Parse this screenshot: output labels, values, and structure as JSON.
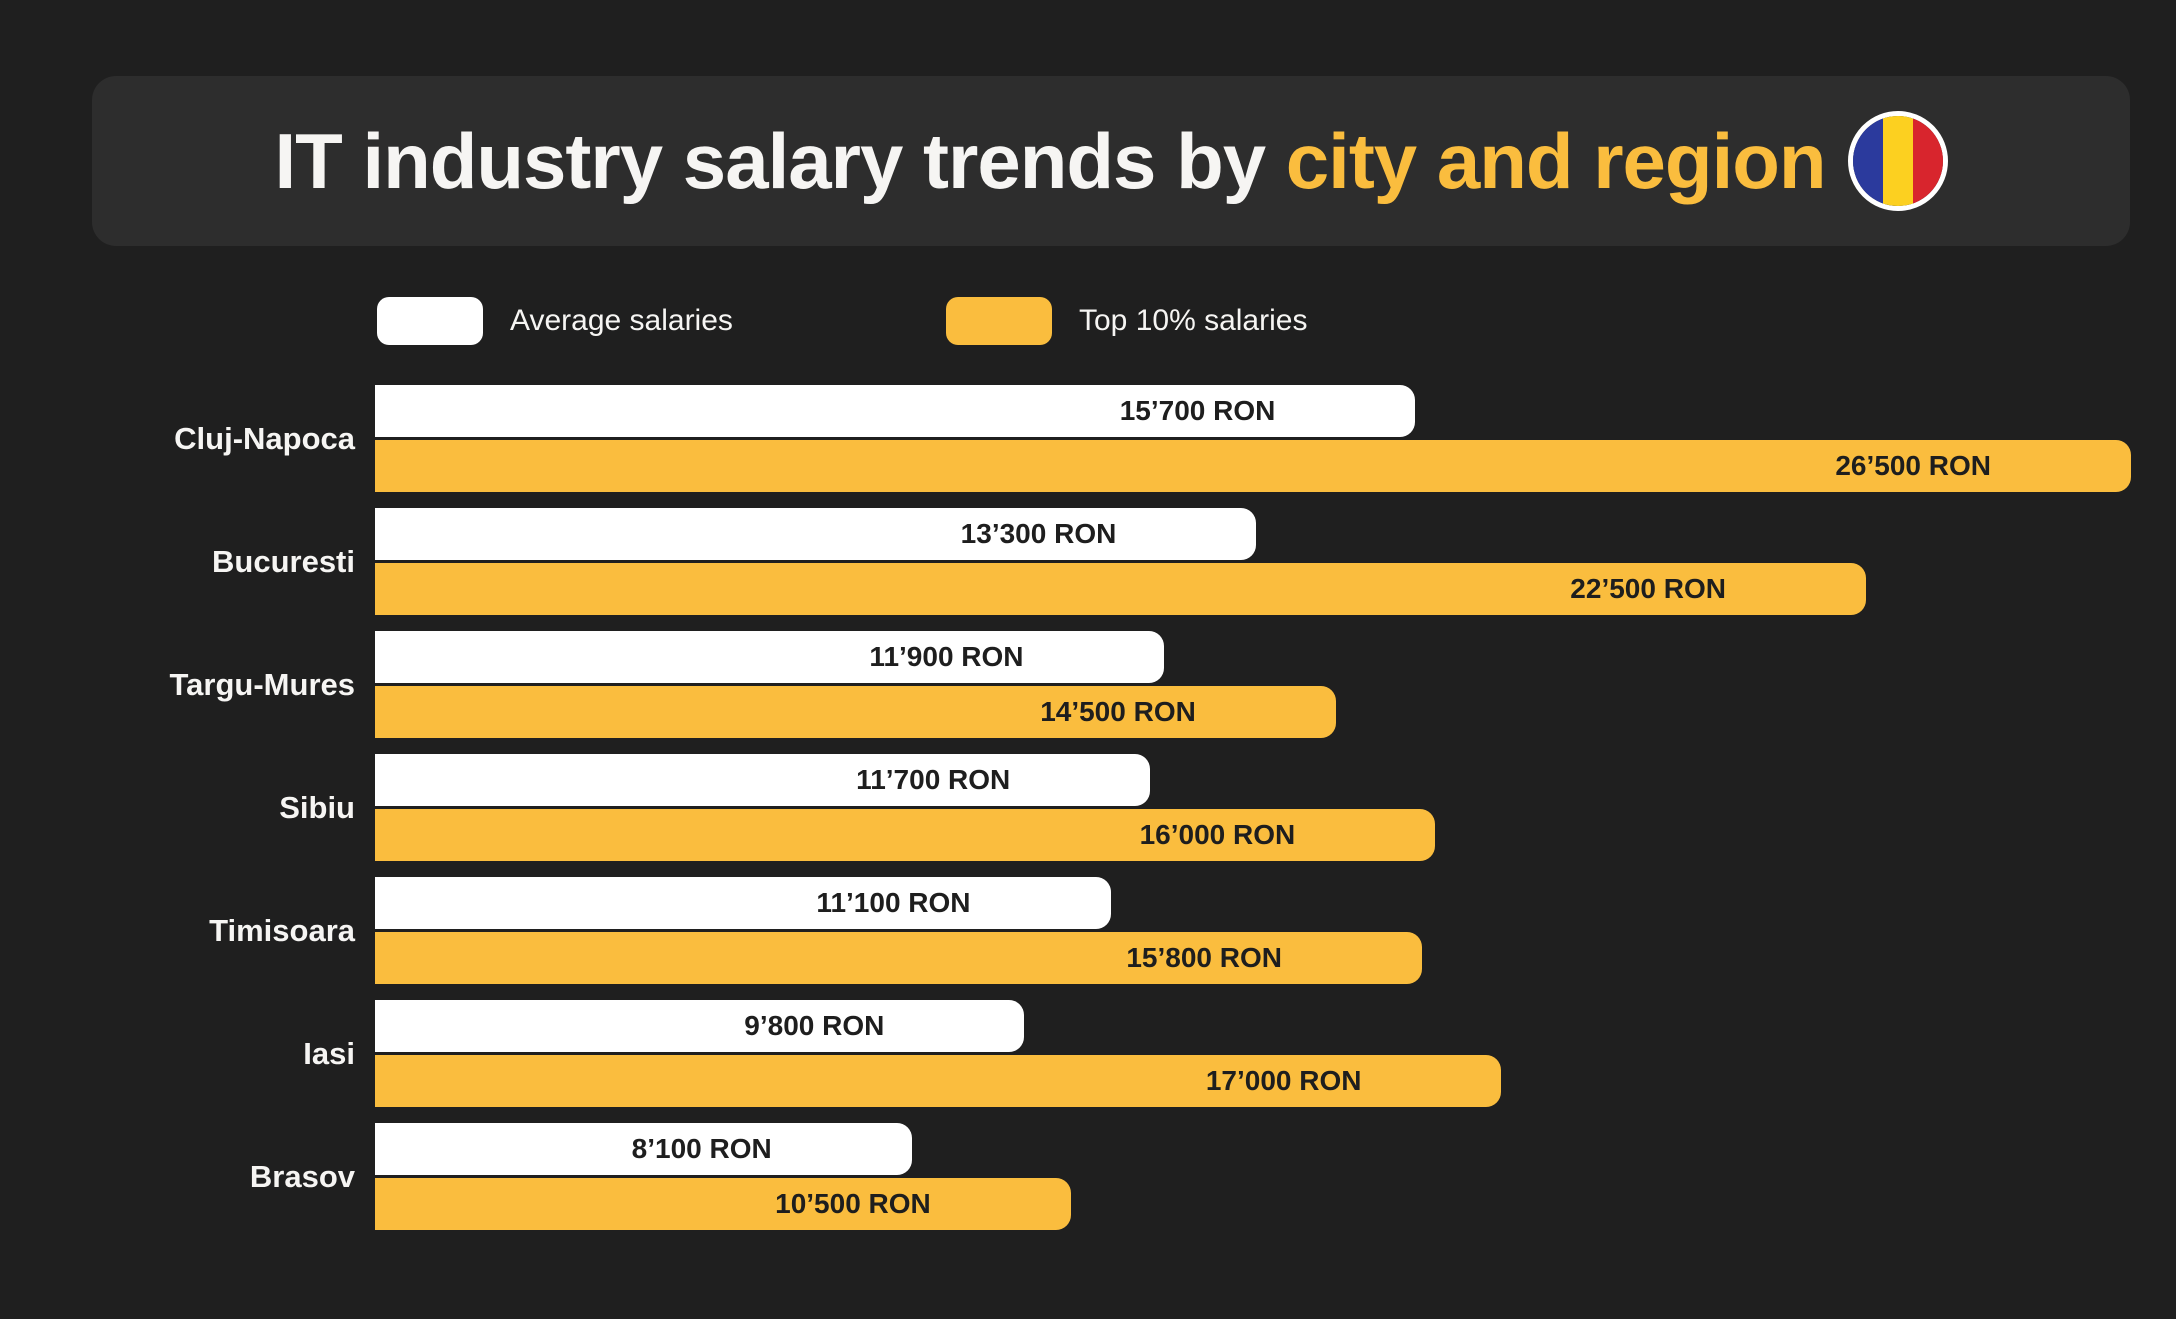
{
  "page": {
    "background_color": "#1f1f1f"
  },
  "header": {
    "background_color": "#2d2d2d",
    "title_prefix": "IT industry salary trends by ",
    "title_highlight": "city and region",
    "accent_color": "#fabd3e",
    "flag_colors": [
      "#2b3a9d",
      "#fcd020",
      "#d8252d"
    ]
  },
  "legend": {
    "items": [
      {
        "label": "Average salaries",
        "color": "#ffffff"
      },
      {
        "label": "Top 10% salaries",
        "color": "#fabd3e"
      }
    ]
  },
  "chart_data": {
    "type": "bar",
    "orientation": "horizontal",
    "title": "IT industry salary trends by city and region",
    "unit": "RON",
    "grid": false,
    "legend_position": "top",
    "xmax": 26500,
    "categories": [
      "Cluj-Napoca",
      "Bucuresti",
      "Targu-Mures",
      "Sibiu",
      "Timisoara",
      "Iasi",
      "Brasov"
    ],
    "series": [
      {
        "name": "Average salaries",
        "color": "#ffffff",
        "values": [
          15700,
          13300,
          11900,
          11700,
          11100,
          9800,
          8100
        ],
        "labels": [
          "15’700 RON",
          "13’300 RON",
          "11’900 RON",
          "11’700 RON",
          "11’100 RON",
          "9’800 RON",
          "8’100 RON"
        ]
      },
      {
        "name": "Top 10% salaries",
        "color": "#fabd3e",
        "values": [
          26500,
          22500,
          14500,
          16000,
          15800,
          17000,
          10500
        ],
        "labels": [
          "26’500 RON",
          "22’500 RON",
          "14’500 RON",
          "16’000 RON",
          "15’800 RON",
          "17’000 RON",
          "10’500 RON"
        ]
      }
    ]
  }
}
